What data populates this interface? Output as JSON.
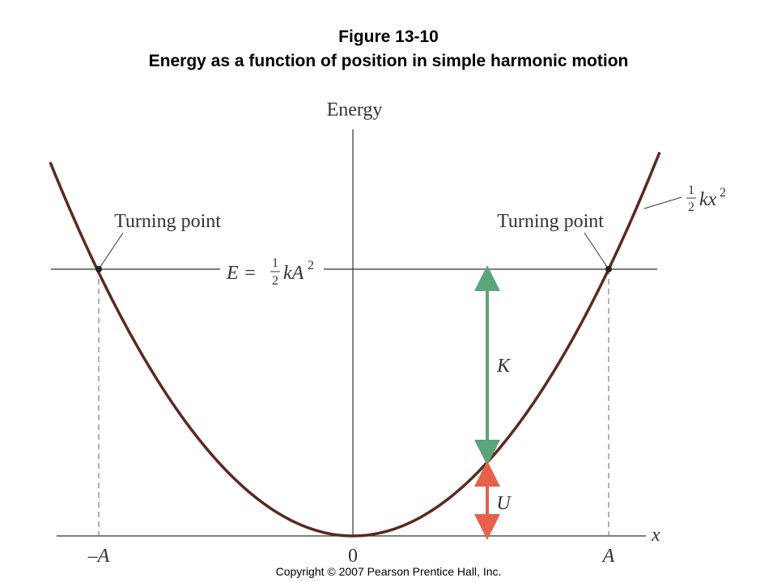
{
  "header": {
    "title": "Figure 13-10",
    "subtitle": "Energy as a function of position in simple harmonic motion"
  },
  "figure": {
    "y_axis_label": "Energy",
    "x_axis_label": "x",
    "turning_points": [
      "Turning point",
      "Turning point"
    ],
    "energy_label": {
      "lhs": "E =",
      "num": "1",
      "den": "2",
      "body": "kA",
      "exp": "2"
    },
    "curve_label": {
      "num": "1",
      "den": "2",
      "body": "kx",
      "exp": "2"
    },
    "kinetic_label": "K",
    "potential_label": "U",
    "x_ticks": [
      "–A",
      "0",
      "A"
    ]
  },
  "footer": {
    "copyright": "Copyright © 2007 Pearson Prentice Hall, Inc."
  }
}
